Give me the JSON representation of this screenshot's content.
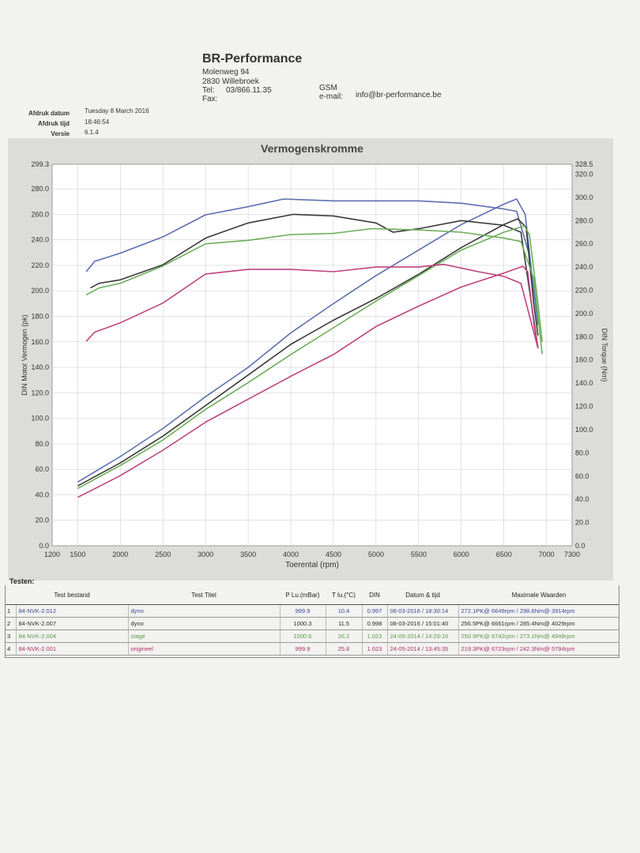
{
  "header": {
    "company": "BR-Performance",
    "street": "Molenweg 94",
    "city": "2830 Willebroek",
    "tel_label": "Tel:",
    "tel": "03/866.11.35",
    "fax_label": "Fax:",
    "gsm_label": "GSM",
    "email_label": "e-mail:",
    "email": "info@br-performance.be"
  },
  "meta": {
    "print_date_label": "Afdruk datum",
    "print_date": "Tuesday 8 March 2016",
    "print_time_label": "Afdruk tijd",
    "print_time": "18:46:54",
    "version_label": "Versie",
    "version": "6.1.4"
  },
  "chart_data": {
    "type": "line",
    "title": "Vermogenskromme",
    "xlabel": "Toerental (rpm)",
    "ylabel_left": "DIN Motor Vermogen (pk)",
    "ylabel_right": "DIN Torque (Nm)",
    "xlim": [
      1200,
      7300
    ],
    "ylim_left": [
      0,
      299.3
    ],
    "ylim_right": [
      0,
      328.5
    ],
    "x_ticks": [
      1200,
      1500,
      2000,
      2500,
      3000,
      3500,
      4000,
      4500,
      5000,
      5500,
      6000,
      6500,
      7000,
      7300
    ],
    "y_left_ticks": [
      "0.0",
      "20.0",
      "40.0",
      "60.0",
      "80.0",
      "100.0",
      "120.0",
      "140.0",
      "160.0",
      "180.0",
      "200.0",
      "220.0",
      "240.0",
      "260.0",
      "280.0",
      "299.3"
    ],
    "y_left_values": [
      0,
      20,
      40,
      60,
      80,
      100,
      120,
      140,
      160,
      180,
      200,
      220,
      240,
      260,
      280,
      299.3
    ],
    "y_right_ticks": [
      "0.0",
      "20.0",
      "40.0",
      "60.0",
      "80.0",
      "100.0",
      "120.0",
      "140.0",
      "160.0",
      "180.0",
      "200.0",
      "220.0",
      "240.0",
      "260.0",
      "280.0",
      "300.0",
      "320.0",
      "328.5"
    ],
    "y_right_values": [
      0,
      20,
      40,
      60,
      80,
      100,
      120,
      140,
      160,
      180,
      200,
      220,
      240,
      260,
      280,
      300,
      320,
      328.5
    ],
    "grid": true,
    "series": [
      {
        "name": "84-NVK-2.012",
        "color": "#5d6fb2",
        "power": [
          [
            1500,
            50
          ],
          [
            2000,
            70
          ],
          [
            2500,
            92
          ],
          [
            3000,
            117
          ],
          [
            3500,
            140
          ],
          [
            4000,
            167
          ],
          [
            4500,
            190
          ],
          [
            5000,
            212
          ],
          [
            5500,
            232
          ],
          [
            6000,
            252
          ],
          [
            6500,
            268
          ],
          [
            6649,
            272.1
          ],
          [
            6750,
            260
          ],
          [
            6850,
            200
          ],
          [
            6900,
            175
          ]
        ],
        "torque": [
          [
            1600,
            236
          ],
          [
            1700,
            245
          ],
          [
            2000,
            252
          ],
          [
            2500,
            266
          ],
          [
            3000,
            285
          ],
          [
            3500,
            292
          ],
          [
            3914,
            298.6
          ],
          [
            4500,
            297
          ],
          [
            5000,
            297
          ],
          [
            5500,
            297
          ],
          [
            6000,
            295
          ],
          [
            6500,
            290
          ],
          [
            6650,
            288
          ],
          [
            6800,
            250
          ],
          [
            6900,
            190
          ]
        ]
      },
      {
        "name": "84-NVK-2.007",
        "color": "#3a3a3a",
        "power": [
          [
            1500,
            47
          ],
          [
            2000,
            65
          ],
          [
            2500,
            86
          ],
          [
            3000,
            110
          ],
          [
            3500,
            134
          ],
          [
            4000,
            158
          ],
          [
            4500,
            177
          ],
          [
            5000,
            194
          ],
          [
            5500,
            213
          ],
          [
            6000,
            234
          ],
          [
            6500,
            252
          ],
          [
            6661,
            256.5
          ],
          [
            6760,
            250
          ],
          [
            6850,
            190
          ],
          [
            6900,
            165
          ]
        ],
        "torque": [
          [
            1650,
            222
          ],
          [
            1750,
            226
          ],
          [
            2000,
            229
          ],
          [
            2500,
            242
          ],
          [
            3000,
            265
          ],
          [
            3500,
            278
          ],
          [
            4029,
            285.4
          ],
          [
            4500,
            284
          ],
          [
            5000,
            278
          ],
          [
            5200,
            270
          ],
          [
            5500,
            273
          ],
          [
            6000,
            280
          ],
          [
            6500,
            276
          ],
          [
            6700,
            270
          ],
          [
            6900,
            170
          ]
        ]
      },
      {
        "name": "84-NVK-2.004",
        "color": "#6cae58",
        "power": [
          [
            1500,
            45
          ],
          [
            2000,
            63
          ],
          [
            2500,
            83
          ],
          [
            3000,
            107
          ],
          [
            3500,
            128
          ],
          [
            4000,
            150
          ],
          [
            4500,
            171
          ],
          [
            5000,
            192
          ],
          [
            5500,
            212
          ],
          [
            6000,
            232
          ],
          [
            6500,
            246
          ],
          [
            6742,
            250.9
          ],
          [
            6800,
            244
          ],
          [
            6900,
            190
          ],
          [
            6950,
            160
          ]
        ],
        "torque": [
          [
            1600,
            216
          ],
          [
            1750,
            222
          ],
          [
            2000,
            226
          ],
          [
            2500,
            241
          ],
          [
            3000,
            260
          ],
          [
            3500,
            263
          ],
          [
            4000,
            268
          ],
          [
            4500,
            269
          ],
          [
            4948,
            273.1
          ],
          [
            5500,
            272
          ],
          [
            6000,
            270
          ],
          [
            6500,
            265
          ],
          [
            6700,
            262
          ],
          [
            6850,
            230
          ],
          [
            6950,
            165
          ]
        ]
      },
      {
        "name": "84-NVK-2.001",
        "color": "#c0427e",
        "power": [
          [
            1500,
            38
          ],
          [
            2000,
            55
          ],
          [
            2500,
            75
          ],
          [
            3000,
            97
          ],
          [
            3500,
            115
          ],
          [
            4000,
            133
          ],
          [
            4500,
            150
          ],
          [
            5000,
            172
          ],
          [
            5500,
            188
          ],
          [
            6000,
            203
          ],
          [
            6500,
            214
          ],
          [
            6723,
            219.3
          ],
          [
            6780,
            215
          ],
          [
            6850,
            175
          ],
          [
            6900,
            155
          ]
        ],
        "torque": [
          [
            1600,
            176
          ],
          [
            1700,
            184
          ],
          [
            2000,
            192
          ],
          [
            2500,
            209
          ],
          [
            3000,
            234
          ],
          [
            3500,
            238
          ],
          [
            4000,
            238
          ],
          [
            4500,
            236
          ],
          [
            5000,
            240
          ],
          [
            5500,
            240
          ],
          [
            5794,
            242.3
          ],
          [
            6200,
            236
          ],
          [
            6500,
            232
          ],
          [
            6700,
            226
          ],
          [
            6900,
            170
          ]
        ]
      }
    ]
  },
  "tests": {
    "section_label": "Testen:",
    "headers": [
      "",
      "Test bestand",
      "Test Titel",
      "P Lu.(mBar)",
      "T lu.(°C)",
      "DIN",
      "Datum & tijd",
      "Maximale Waarden"
    ],
    "rows": [
      {
        "num": "1",
        "file": "84-NVK-2.012",
        "title": "dyno",
        "pressure": "999.9",
        "temp": "10.4",
        "din": "0.997",
        "date": "08-03-2016 / 18:30:14",
        "max": "272.1PK@ 6649rpm / 298.6Nm@ 3914rpm",
        "color": "#3b4a9a"
      },
      {
        "num": "2",
        "file": "84-NVK-2.007",
        "title": "dyno",
        "pressure": "1000.3",
        "temp": "11.5",
        "din": "0.998",
        "date": "08-03-2016 / 15:01:40",
        "max": "256.5PK@ 6661rpm / 285.4Nm@ 4029rpm",
        "color": "#2b2b2b"
      },
      {
        "num": "3",
        "file": "84-NVK-2.004",
        "title": "stage",
        "pressure": "1000.6",
        "temp": "26.2",
        "din": "1.023",
        "date": "24-05-2014 / 14:20:10",
        "max": "250.9PK@ 6742rpm / 273.1Nm@ 4948rpm",
        "color": "#5a9c45"
      },
      {
        "num": "4",
        "file": "84-NVK-2.001",
        "title": "origineel",
        "pressure": "999.9",
        "temp": "25.8",
        "din": "1.023",
        "date": "24-05-2014 / 13:45:35",
        "max": "219.3PK@ 6723rpm / 242.3Nm@ 5794rpm",
        "color": "#b0306e"
      }
    ]
  }
}
